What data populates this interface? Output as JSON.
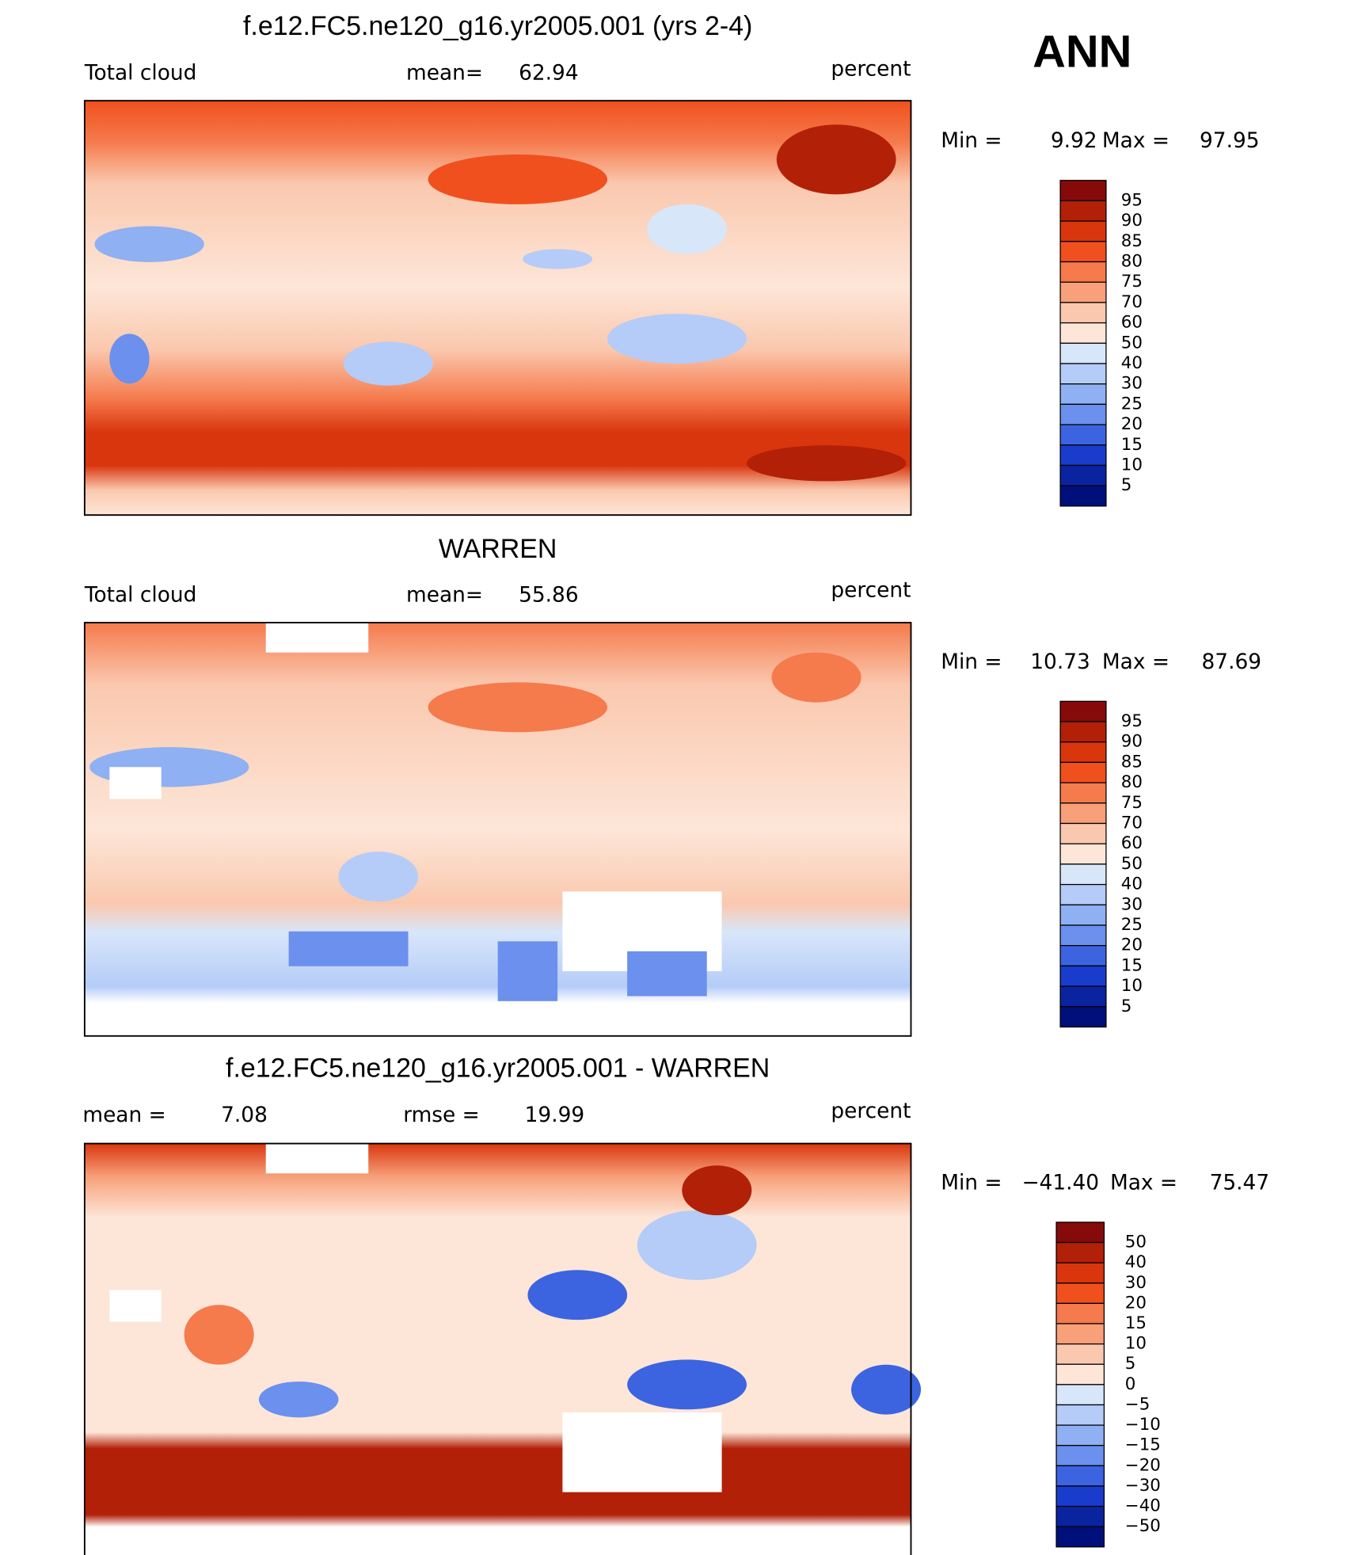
{
  "header": {
    "season": "ANN"
  },
  "colorbar_colors": [
    "#870a0a",
    "#b22008",
    "#d9360e",
    "#f0501e",
    "#f57a4c",
    "#f7a07a",
    "#fac8ae",
    "#fde6d8",
    "#d8e6fa",
    "#b4ccf7",
    "#8fb0f2",
    "#6b90ed",
    "#3c64e0",
    "#1a3ccc",
    "#0a24a0",
    "#00107a"
  ],
  "panels": [
    {
      "title": "f.e12.FC5.ne120_g16.yr2005.001 (yrs 2-4)",
      "left_label": "Total cloud",
      "center_label": "mean=",
      "center_value": "62.94",
      "units": "percent",
      "min_label": "Min =",
      "min": "9.92",
      "max_label": "Max =",
      "max": "97.95",
      "colorbar_labels": [
        "95",
        "90",
        "85",
        "80",
        "75",
        "70",
        "60",
        "50",
        "40",
        "30",
        "25",
        "20",
        "15",
        "10",
        "5"
      ]
    },
    {
      "title": "WARREN",
      "left_label": "Total cloud",
      "center_label": "mean=",
      "center_value": "55.86",
      "units": "percent",
      "min_label": "Min =",
      "min": "10.73",
      "max_label": "Max =",
      "max": "87.69",
      "colorbar_labels": [
        "95",
        "90",
        "85",
        "80",
        "75",
        "70",
        "60",
        "50",
        "40",
        "30",
        "25",
        "20",
        "15",
        "10",
        "5"
      ]
    },
    {
      "title": "f.e12.FC5.ne120_g16.yr2005.001 - WARREN",
      "left_label": "mean =",
      "left_value": "7.08",
      "center_label": "rmse =",
      "center_value": "19.99",
      "units": "percent",
      "min_label": "Min =",
      "min": "−41.40",
      "max_label": "Max =",
      "max": "75.47",
      "colorbar_labels": [
        "50",
        "40",
        "30",
        "20",
        "15",
        "10",
        "5",
        "0",
        "−5",
        "−10",
        "−15",
        "−20",
        "−30",
        "−40",
        "−50"
      ]
    }
  ]
}
